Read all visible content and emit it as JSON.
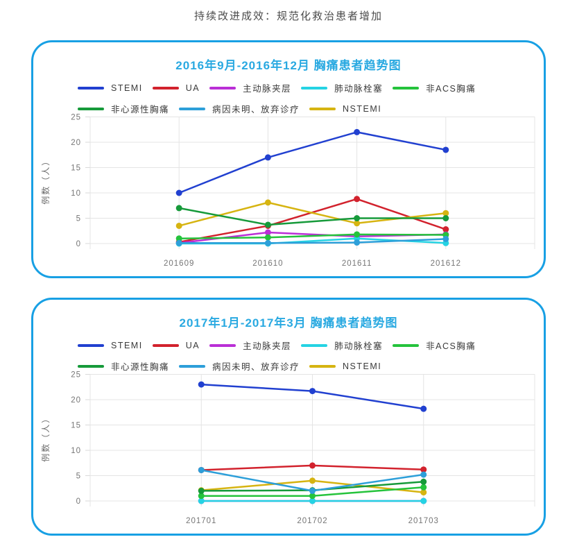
{
  "page": {
    "title": "持续改进成效：规范化救治患者增加"
  },
  "colors": {
    "panel_border": "#18a0e4",
    "chart_title": "#29a9e1",
    "grid": "#e4e4e4",
    "axis_text": "#757575"
  },
  "chart_data": [
    {
      "type": "line",
      "title": "2016年9月-2016年12月 胸痛患者趋势图",
      "ylabel": "例数（人）",
      "xlabel": "",
      "ylim": [
        0,
        25
      ],
      "yticks": [
        0,
        5,
        10,
        15,
        20,
        25
      ],
      "grid": true,
      "legend_position": "top",
      "categories": [
        "201609",
        "201610",
        "201611",
        "201612"
      ],
      "series": [
        {
          "name": "STEMI",
          "color": "#2140d0",
          "z": 8,
          "values": [
            10,
            17,
            22,
            18.5
          ]
        },
        {
          "name": "UA",
          "color": "#d2222d",
          "z": 1,
          "values": [
            0.3,
            3.5,
            8.8,
            2.8
          ]
        },
        {
          "name": "主动脉夹层",
          "color": "#ba2fd6",
          "z": 2,
          "values": [
            0.1,
            2.2,
            1.4,
            1.8
          ]
        },
        {
          "name": "肺动脉栓塞",
          "color": "#25d3e3",
          "z": 3,
          "values": [
            0,
            0,
            1,
            0.1
          ]
        },
        {
          "name": "非ACS胸痛",
          "color": "#25c33c",
          "z": 5,
          "values": [
            1,
            1.2,
            1.8,
            1.7
          ]
        },
        {
          "name": "非心源性胸痛",
          "color": "#169a3a",
          "z": 6,
          "values": [
            7,
            3.7,
            5,
            5
          ]
        },
        {
          "name": "病因未明、放弃诊疗",
          "color": "#2d9fd9",
          "z": 7,
          "values": [
            0.1,
            0.1,
            0.2,
            0.9
          ]
        },
        {
          "name": "NSTEMI",
          "color": "#d6b411",
          "z": 4,
          "values": [
            3.5,
            8.1,
            4,
            6
          ]
        }
      ]
    },
    {
      "type": "line",
      "title": "2017年1月-2017年3月 胸痛患者趋势图",
      "ylabel": "例数（人）",
      "xlabel": "",
      "ylim": [
        0,
        25
      ],
      "yticks": [
        0,
        5,
        10,
        15,
        20,
        25
      ],
      "grid": true,
      "legend_position": "top",
      "categories": [
        "201701",
        "201702",
        "201703"
      ],
      "series": [
        {
          "name": "STEMI",
          "color": "#2140d0",
          "z": 8,
          "values": [
            23,
            21.7,
            18.2
          ]
        },
        {
          "name": "UA",
          "color": "#d2222d",
          "z": 1,
          "values": [
            6.1,
            7,
            6.2
          ]
        },
        {
          "name": "主动脉夹层",
          "color": "#ba2fd6",
          "z": 2,
          "values": [
            0,
            0,
            0
          ]
        },
        {
          "name": "肺动脉栓塞",
          "color": "#25d3e3",
          "z": 3,
          "values": [
            0,
            0,
            0
          ]
        },
        {
          "name": "非ACS胸痛",
          "color": "#25c33c",
          "z": 5,
          "values": [
            1,
            1,
            2.7
          ]
        },
        {
          "name": "非心源性胸痛",
          "color": "#169a3a",
          "z": 6,
          "values": [
            2,
            2.1,
            3.8
          ]
        },
        {
          "name": "病因未明、放弃诊疗",
          "color": "#2d9fd9",
          "z": 7,
          "values": [
            6.1,
            2,
            5.2
          ]
        },
        {
          "name": "NSTEMI",
          "color": "#d6b411",
          "z": 4,
          "values": [
            2.1,
            4,
            1.7
          ]
        }
      ]
    }
  ]
}
